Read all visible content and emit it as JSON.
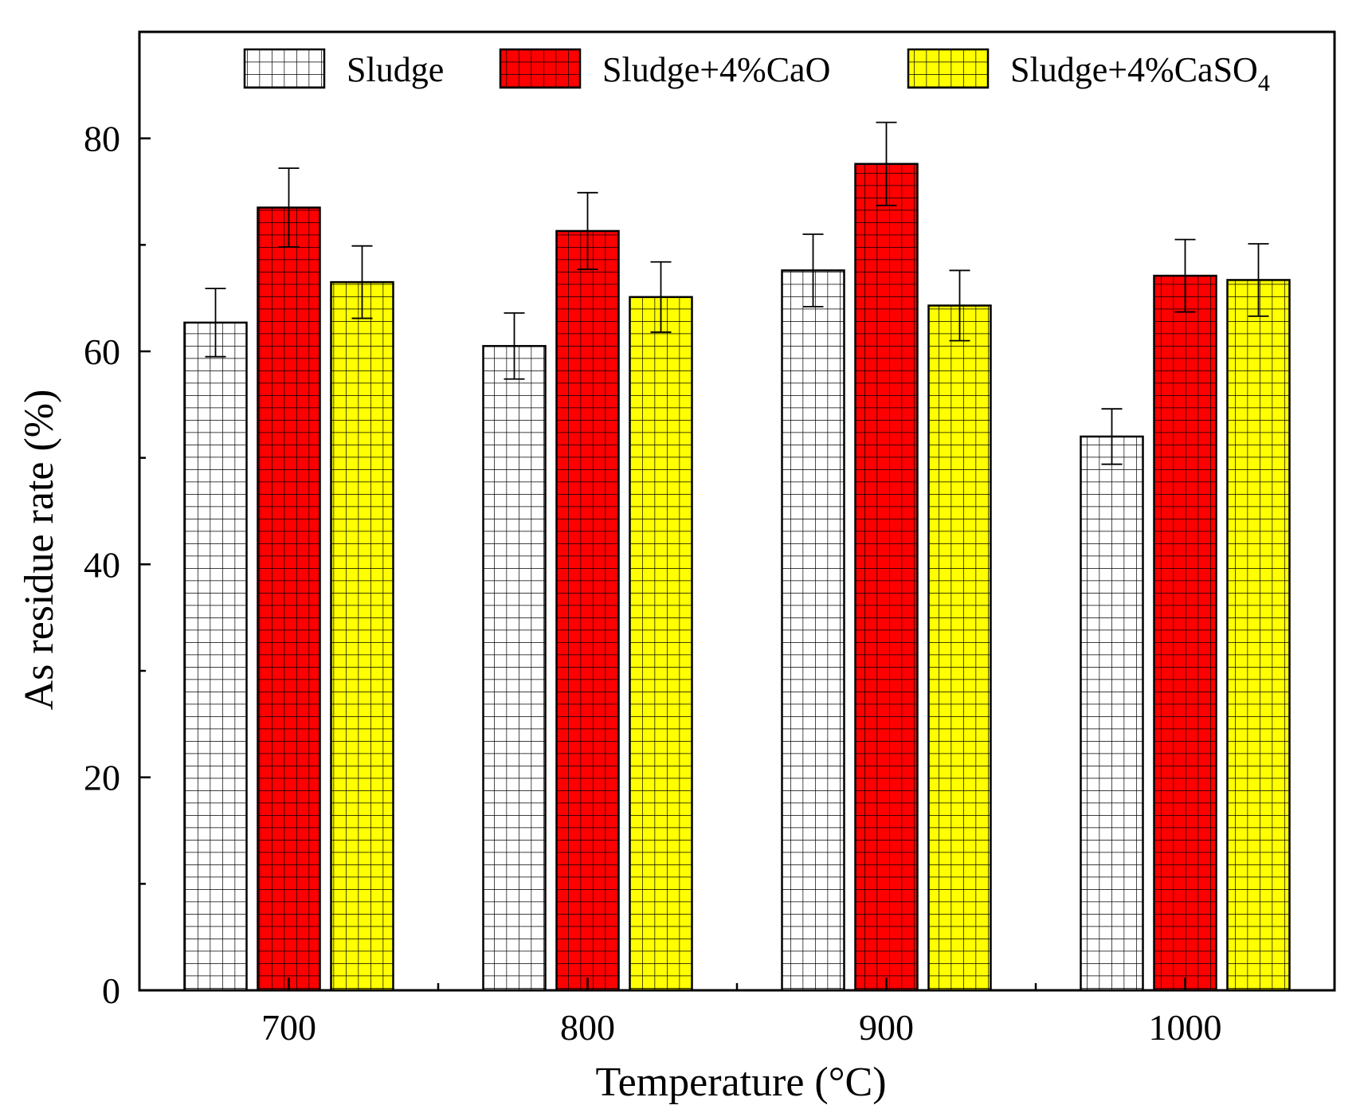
{
  "chart_data": {
    "type": "bar",
    "xlabel": "Temperature (°C)",
    "ylabel": "As residue rate (%)",
    "categories": [
      "700",
      "800",
      "900",
      "1000"
    ],
    "ylim": [
      0,
      90
    ],
    "yticks": [
      0,
      20,
      40,
      60,
      80
    ],
    "grid": false,
    "legend_position": "top",
    "series": [
      {
        "name": "Sludge",
        "color": "#ffffff",
        "values": [
          62.7,
          60.5,
          67.6,
          52.0
        ],
        "errors": [
          3.2,
          3.1,
          3.4,
          2.6
        ]
      },
      {
        "name": "Sludge+4%CaO",
        "color": "#ff0000",
        "values": [
          73.5,
          71.3,
          77.6,
          67.1
        ],
        "errors": [
          3.7,
          3.6,
          3.9,
          3.4
        ]
      },
      {
        "name": "Sludge+4%CaSO",
        "name_subscript": "4",
        "color": "#ffff00",
        "values": [
          66.5,
          65.1,
          64.3,
          66.7
        ],
        "errors": [
          3.4,
          3.3,
          3.3,
          3.4
        ]
      }
    ]
  }
}
